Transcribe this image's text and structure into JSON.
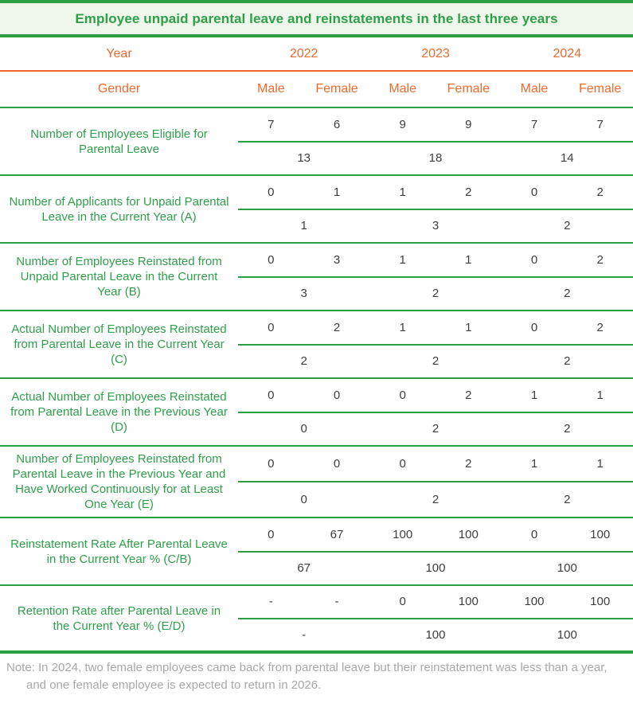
{
  "title": "Employee unpaid parental leave and reinstatements in the last three years",
  "header": {
    "year_label": "Year",
    "years": [
      "2022",
      "2023",
      "2024"
    ],
    "gender_label": "Gender",
    "genders": [
      "Male",
      "Female",
      "Male",
      "Female",
      "Male",
      "Female"
    ]
  },
  "rows": [
    {
      "label": "Number of Employees Eligible for Parental Leave",
      "values": [
        "7",
        "6",
        "9",
        "9",
        "7",
        "7"
      ],
      "totals": [
        "13",
        "18",
        "14"
      ]
    },
    {
      "label": "Number of Applicants for Unpaid Parental Leave in the Current Year (A)",
      "values": [
        "0",
        "1",
        "1",
        "2",
        "0",
        "2"
      ],
      "totals": [
        "1",
        "3",
        "2"
      ]
    },
    {
      "label": "Number of Employees Reinstated from Unpaid Parental Leave in the Current Year (B)",
      "values": [
        "0",
        "3",
        "1",
        "1",
        "0",
        "2"
      ],
      "totals": [
        "3",
        "2",
        "2"
      ]
    },
    {
      "label": "Actual Number of Employees Reinstated from Parental Leave in the Current Year (C)",
      "values": [
        "0",
        "2",
        "1",
        "1",
        "0",
        "2"
      ],
      "totals": [
        "2",
        "2",
        "2"
      ]
    },
    {
      "label": "Actual Number of Employees Reinstated from Parental Leave in the Previous Year (D)",
      "values": [
        "0",
        "0",
        "0",
        "2",
        "1",
        "1"
      ],
      "totals": [
        "0",
        "2",
        "2"
      ]
    },
    {
      "label": "Number of Employees Reinstated from Parental Leave in the Previous Year and Have Worked Continuously for at Least One Year (E)",
      "values": [
        "0",
        "0",
        "0",
        "2",
        "1",
        "1"
      ],
      "totals": [
        "0",
        "2",
        "2"
      ]
    },
    {
      "label": "Reinstatement Rate After Parental Leave in the Current Year % (C/B)",
      "values": [
        "0",
        "67",
        "100",
        "100",
        "0",
        "100"
      ],
      "totals": [
        "67",
        "100",
        "100"
      ]
    },
    {
      "label": "Retention Rate after Parental Leave in the Current Year % (E/D)",
      "values": [
        "-",
        "-",
        "0",
        "100",
        "100",
        "100"
      ],
      "totals": [
        "-",
        "100",
        "100"
      ]
    }
  ],
  "note": "Note: In 2024, two female employees came back from parental leave but their reinstatement was less than a year, and one female employee is expected to return in 2026.",
  "colors": {
    "green_text": "#2fa04a",
    "green_line": "#2e9e45",
    "title_background": "#eff6ea",
    "orange": "#ed6a2e",
    "value_text": "#3d3d3d",
    "note_gray": "#a8a8a8"
  }
}
